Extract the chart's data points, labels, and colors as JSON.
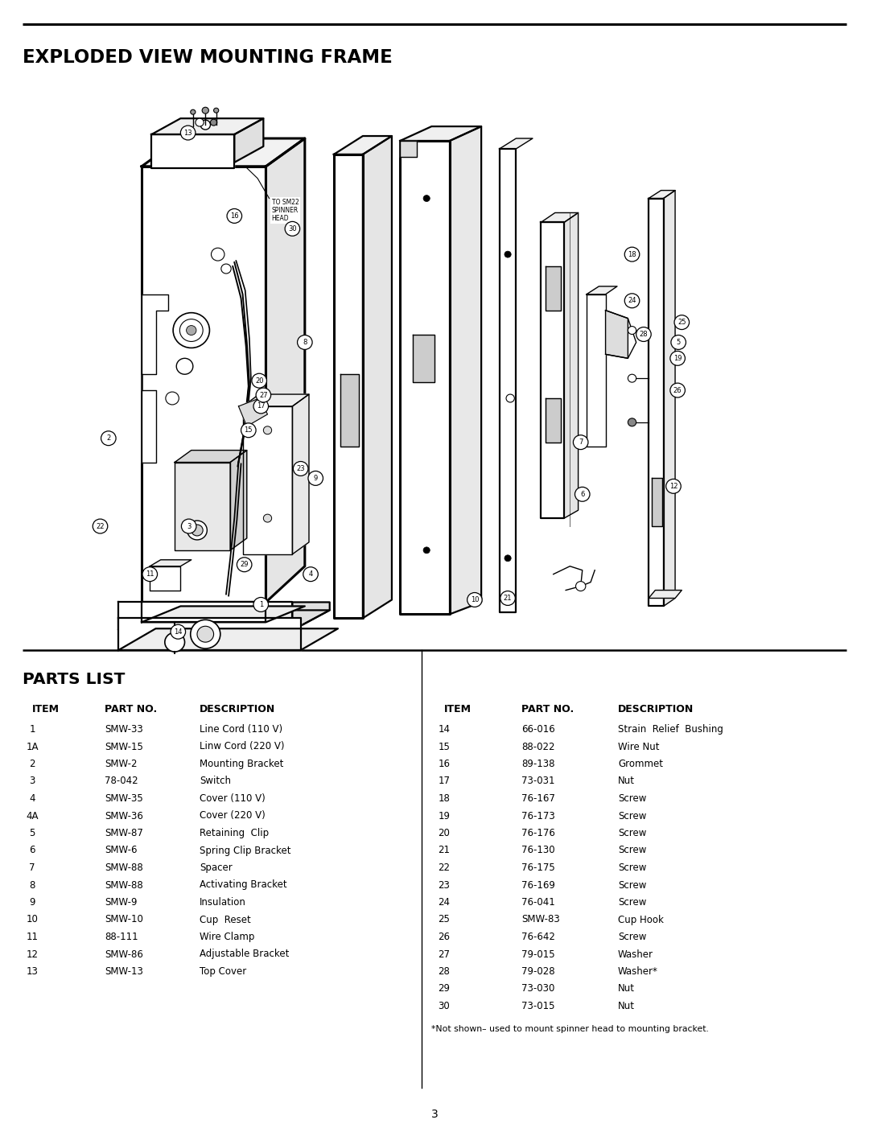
{
  "title": "EXPLODED VIEW MOUNTING FRAME",
  "parts_list_title": "PARTS LIST",
  "left_parts": [
    [
      "1",
      "SMW-33",
      "Line Cord (110 V)"
    ],
    [
      "1A",
      "SMW-15",
      "Linw Cord (220 V)"
    ],
    [
      "2",
      "SMW-2",
      "Mounting Bracket"
    ],
    [
      "3",
      "78-042",
      "Switch"
    ],
    [
      "4",
      "SMW-35",
      "Cover (110 V)"
    ],
    [
      "4A",
      "SMW-36",
      "Cover (220 V)"
    ],
    [
      "5",
      "SMW-87",
      "Retaining  Clip"
    ],
    [
      "6",
      "SMW-6",
      "Spring Clip Bracket"
    ],
    [
      "7",
      "SMW-88",
      "Spacer"
    ],
    [
      "8",
      "SMW-88",
      "Activating Bracket"
    ],
    [
      "9",
      "SMW-9",
      "Insulation"
    ],
    [
      "10",
      "SMW-10",
      "Cup  Reset"
    ],
    [
      "11",
      "88-111",
      "Wire Clamp"
    ],
    [
      "12",
      "SMW-86",
      "Adjustable Bracket"
    ],
    [
      "13",
      "SMW-13",
      "Top Cover"
    ]
  ],
  "right_parts": [
    [
      "14",
      "66-016",
      "Strain  Relief  Bushing"
    ],
    [
      "15",
      "88-022",
      "Wire Nut"
    ],
    [
      "16",
      "89-138",
      "Grommet"
    ],
    [
      "17",
      "73-031",
      "Nut"
    ],
    [
      "18",
      "76-167",
      "Screw"
    ],
    [
      "19",
      "76-173",
      "Screw"
    ],
    [
      "20",
      "76-176",
      "Screw"
    ],
    [
      "21",
      "76-130",
      "Screw"
    ],
    [
      "22",
      "76-175",
      "Screw"
    ],
    [
      "23",
      "76-169",
      "Screw"
    ],
    [
      "24",
      "76-041",
      "Screw"
    ],
    [
      "25",
      "SMW-83",
      "Cup Hook"
    ],
    [
      "26",
      "76-642",
      "Screw"
    ],
    [
      "27",
      "79-015",
      "Washer"
    ],
    [
      "28",
      "79-028",
      "Washer*"
    ],
    [
      "29",
      "73-030",
      "Nut"
    ],
    [
      "30",
      "73-015",
      "Nut"
    ]
  ],
  "footnote": "*Not shown– used to mount spinner head to mounting bracket.",
  "page_number": "3",
  "bg": "#ffffff",
  "fg": "#000000"
}
